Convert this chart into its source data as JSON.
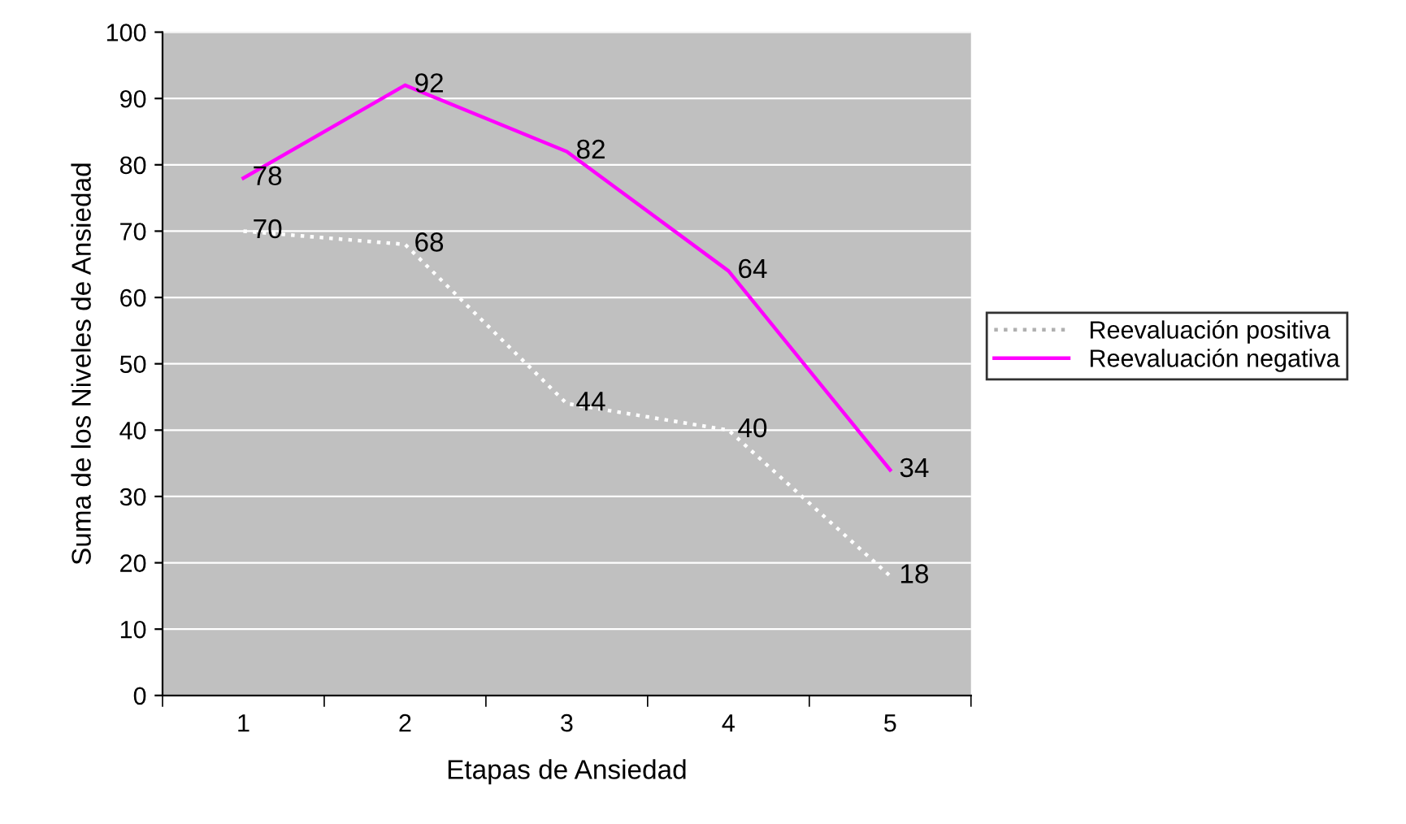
{
  "chart_data": {
    "type": "line",
    "xlabel": "Etapas de Ansiedad",
    "ylabel": "Suma de los Niveles de Ansiedad",
    "categories": [
      "1",
      "2",
      "3",
      "4",
      "5"
    ],
    "series": [
      {
        "name": "Reevaluación positiva",
        "color": "#ffffff",
        "line_style": "dotted",
        "values": [
          70,
          68,
          44,
          40,
          18
        ]
      },
      {
        "name": "Reevaluación negativa",
        "color": "#ff00ff",
        "line_style": "solid",
        "values": [
          78,
          92,
          82,
          64,
          34
        ]
      }
    ],
    "ylim": [
      0,
      100
    ],
    "yticks": [
      0,
      10,
      20,
      30,
      40,
      50,
      60,
      70,
      80,
      90,
      100
    ],
    "grid": "y",
    "legend": "right",
    "data_labels": true,
    "marker": "none"
  }
}
